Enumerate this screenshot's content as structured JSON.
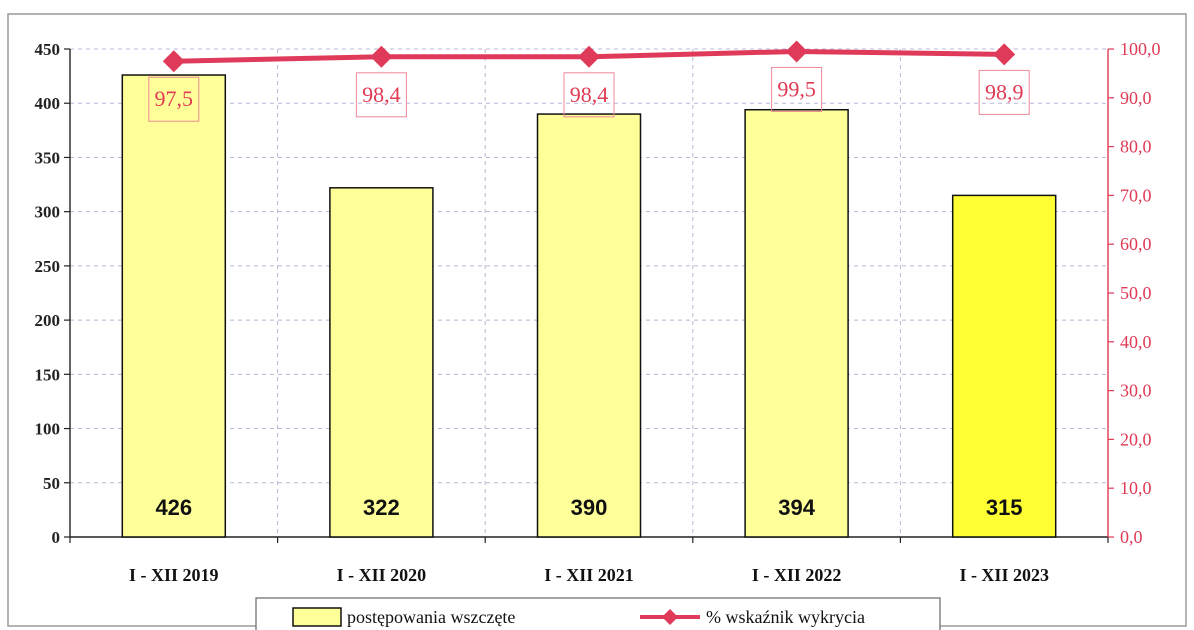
{
  "chart_data": {
    "type": "bar",
    "categories": [
      "I - XII 2019",
      "I - XII 2020",
      "I - XII 2021",
      "I - XII 2022",
      "I - XII 2023"
    ],
    "series": [
      {
        "name": "postępowania wszczęte",
        "type": "bar",
        "axis": "left",
        "values": [
          426,
          322,
          390,
          394,
          315
        ],
        "color": "#ffff99",
        "highlight_color": "#ffff33"
      },
      {
        "name": "% wskaźnik wykrycia",
        "type": "line",
        "axis": "right",
        "values": [
          97.5,
          98.4,
          98.4,
          99.5,
          98.9
        ],
        "value_labels": [
          "97,5",
          "98,4",
          "98,4",
          "99,5",
          "98,9"
        ],
        "color": "#e03a5a"
      }
    ],
    "y_left": {
      "ylim": [
        0,
        450
      ],
      "ticks": [
        0,
        50,
        100,
        150,
        200,
        250,
        300,
        350,
        400,
        450
      ],
      "tick_labels": [
        "0",
        "50",
        "100",
        "150",
        "200",
        "250",
        "300",
        "350",
        "400",
        "450"
      ]
    },
    "y_right": {
      "ylim": [
        0,
        100
      ],
      "ticks": [
        0,
        10,
        20,
        30,
        40,
        50,
        60,
        70,
        80,
        90,
        100
      ],
      "tick_labels": [
        "0,0",
        "10,0",
        "20,0",
        "30,0",
        "40,0",
        "50,0",
        "60,0",
        "70,0",
        "80,0",
        "90,0",
        "100,0"
      ],
      "color": "#e03a55"
    },
    "grid": true,
    "legend_position": "bottom",
    "legend": [
      "postępowania wszczęte",
      "% wskaźnik wykrycia"
    ]
  }
}
